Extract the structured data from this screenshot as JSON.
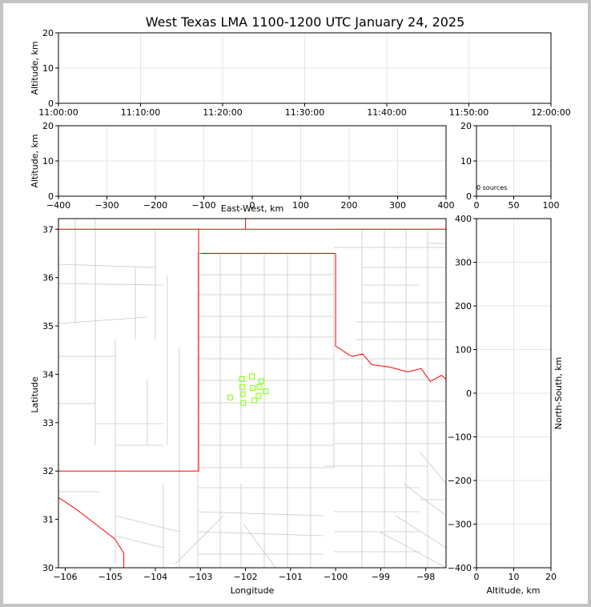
{
  "title": "West Texas LMA 1100-1200 UTC January 24, 2025",
  "panels": {
    "time_altitude": {
      "ylabel": "Altitude, km",
      "yticks": [
        "0",
        "10",
        "20"
      ],
      "xticks": [
        "11:00:00",
        "11:10:00",
        "11:20:00",
        "11:30:00",
        "11:40:00",
        "11:50:00",
        "12:00:00"
      ]
    },
    "ew_altitude": {
      "ylabel": "Altitude, km",
      "xlabel": "East-West, km",
      "yticks": [
        "0",
        "10",
        "20"
      ],
      "xticks": [
        "−400",
        "−300",
        "−200",
        "−100",
        "0",
        "100",
        "200",
        "300",
        "400"
      ]
    },
    "histogram": {
      "source_count_text": "0 sources",
      "yticks": [
        "0",
        "10",
        "20"
      ],
      "xticks": [
        "0",
        "50",
        "100"
      ]
    },
    "plan_view": {
      "xlabel": "Longitude",
      "ylabel": "Latitude",
      "xticks": [
        "−106",
        "−105",
        "−104",
        "−103",
        "−102",
        "−101",
        "−100",
        "−99",
        "−98"
      ],
      "yticks": [
        "30",
        "31",
        "32",
        "33",
        "34",
        "35",
        "36",
        "37"
      ],
      "state_border_color": "#ff0000",
      "county_line_color": "#c8c8c8"
    },
    "ns_altitude": {
      "xlabel": "Altitude, km",
      "ylabel": "North-South, km",
      "xticks": [
        "0",
        "10",
        "20"
      ],
      "yticks": [
        "−400",
        "−300",
        "−200",
        "−100",
        "0",
        "100",
        "200",
        "300",
        "400"
      ]
    }
  },
  "chart_data": [
    {
      "type": "scatter",
      "title": "West Texas LMA 1100-1200 UTC January 24, 2025",
      "xlabel": "Longitude",
      "ylabel": "Latitude",
      "xlim": [
        -106.15,
        -97.55
      ],
      "ylim": [
        30.0,
        37.22
      ],
      "grid": true,
      "marker_color": "#7fff00",
      "marker": "open-square",
      "series": [
        {
          "x": [
            -102.08,
            -101.86,
            -101.65,
            -102.07,
            -101.84,
            -101.69,
            -101.55,
            -102.06,
            -101.71,
            -102.34,
            -101.8,
            -102.05
          ],
          "y": [
            33.9,
            33.96,
            33.86,
            33.74,
            33.72,
            33.74,
            33.65,
            33.59,
            33.56,
            33.52,
            33.46,
            33.41
          ]
        }
      ]
    },
    {
      "type": "scatter",
      "xlabel": "",
      "ylabel": "Altitude, km",
      "xlim": [
        "11:00:00",
        "12:00:00"
      ],
      "ylim": [
        0,
        20
      ],
      "grid": true,
      "series": []
    },
    {
      "type": "scatter",
      "xlabel": "East-West, km",
      "ylabel": "Altitude, km",
      "xlim": [
        -400,
        400
      ],
      "ylim": [
        0,
        20
      ],
      "grid": true,
      "series": []
    },
    {
      "type": "bar",
      "annotation": "0 sources",
      "xlim": [
        0,
        100
      ],
      "ylim": [
        0,
        20
      ],
      "grid": true,
      "series": []
    },
    {
      "type": "scatter",
      "xlabel": "Altitude, km",
      "ylabel": "North-South, km",
      "xlim": [
        0,
        20
      ],
      "ylim": [
        -400,
        400
      ],
      "grid": true,
      "series": []
    }
  ]
}
